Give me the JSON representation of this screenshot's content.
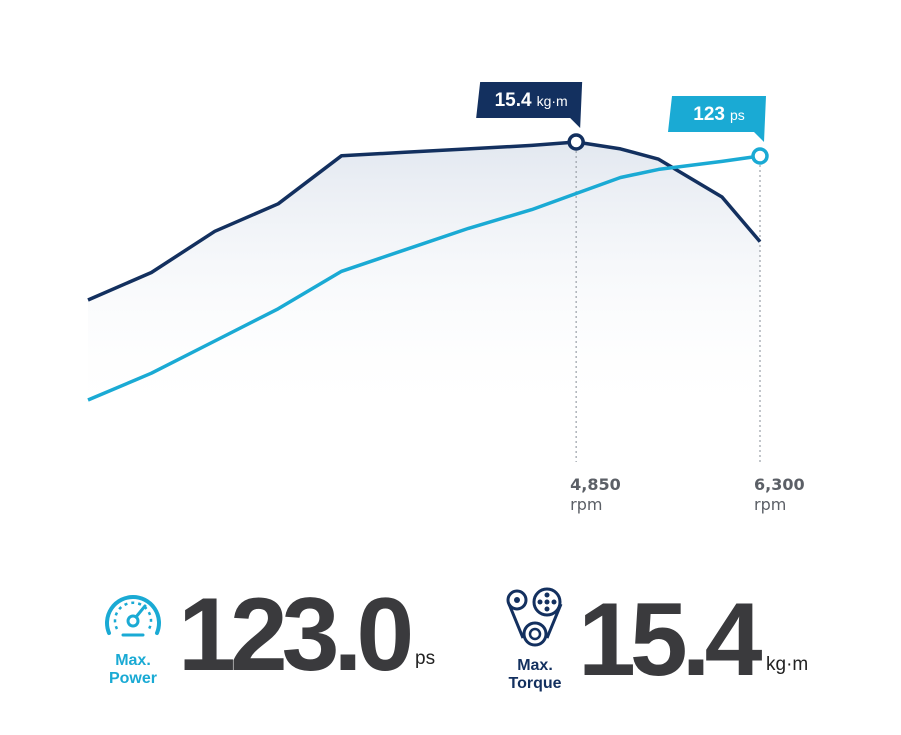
{
  "chart_data": {
    "type": "line",
    "x": [
      1000,
      1500,
      2000,
      2500,
      3000,
      3500,
      4000,
      4500,
      4850,
      5200,
      5500,
      6000,
      6300
    ],
    "series": [
      {
        "values": [
          10.8,
          11.6,
          12.8,
          13.6,
          15.0,
          15.1,
          15.2,
          15.3,
          15.4,
          15.2,
          14.9,
          13.8,
          12.5
        ],
        "color": "#13305f"
      },
      {
        "values": [
          32,
          42,
          54,
          66,
          80,
          88,
          96,
          103,
          109,
          115,
          118,
          121,
          123
        ],
        "color": "#1aaad4"
      }
    ],
    "xticks": [
      {
        "x": 4850,
        "value": "4,850",
        "unit": "rpm"
      },
      {
        "x": 6300,
        "value": "6,300",
        "unit": "rpm"
      }
    ],
    "callouts": [
      {
        "series": 0,
        "x": 4850,
        "value": "15.4",
        "unit": "kg·m",
        "color": "#13305f"
      },
      {
        "series": 1,
        "x": 6300,
        "value": "123",
        "unit": "ps",
        "color": "#1aaad4"
      }
    ],
    "xlim": [
      1000,
      6300
    ],
    "grid": false
  },
  "stats": {
    "power": {
      "label_line1": "Max.",
      "label_line2": "Power",
      "value": "123.0",
      "unit": "ps",
      "color": "#1aaad4",
      "icon": "speedometer-icon"
    },
    "torque": {
      "label_line1": "Max.",
      "label_line2": "Torque",
      "value": "15.4",
      "unit": "kg·m",
      "color": "#13305f",
      "icon": "belt-pulley-icon"
    }
  }
}
